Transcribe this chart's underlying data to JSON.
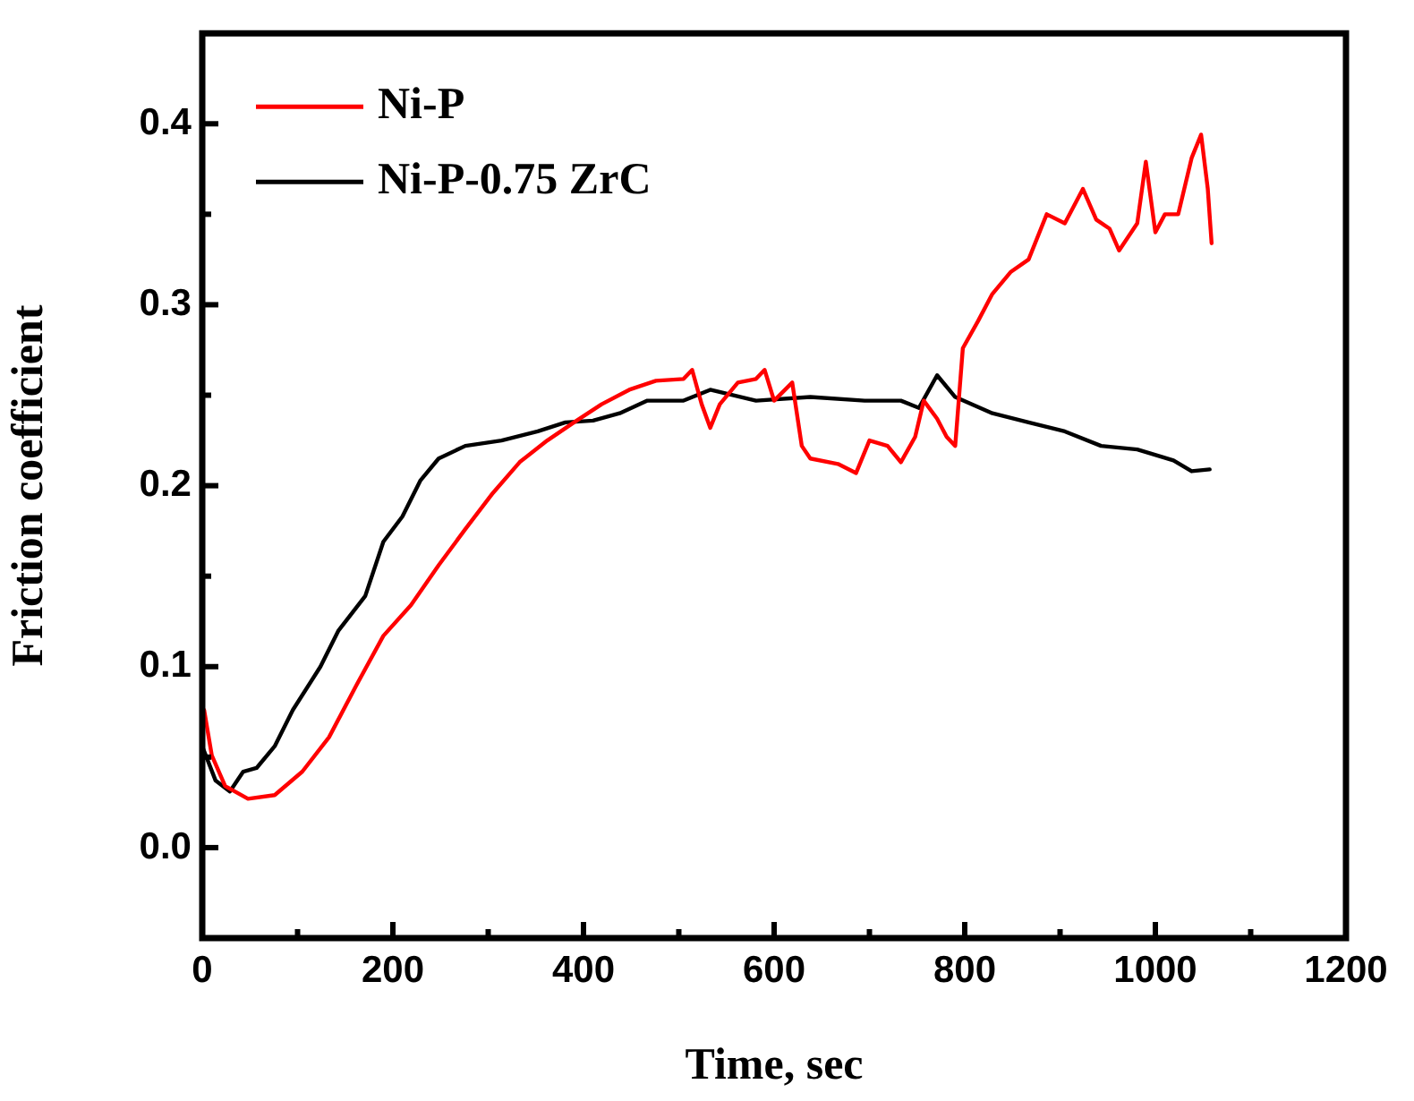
{
  "chart_data": {
    "type": "line",
    "xlabel": "Time, sec",
    "ylabel": "Friction coefficient",
    "xlim": [
      0,
      1200
    ],
    "ylim": [
      -0.05,
      0.45
    ],
    "xticks": [
      0,
      {
        "value": 100,
        "label": null
      },
      200,
      {
        "value": 300,
        "label": null
      },
      400,
      {
        "value": 500,
        "label": null
      },
      600,
      {
        "value": 700,
        "label": null
      },
      800,
      {
        "value": 900,
        "label": null
      },
      1000,
      {
        "value": 1100,
        "label": null
      },
      1200
    ],
    "yticks": [
      {
        "value": 0,
        "label": "0.0"
      },
      {
        "value": 0.05,
        "label": null
      },
      0.1,
      {
        "value": 0.15,
        "label": null
      },
      0.2,
      {
        "value": 0.25,
        "label": null
      },
      0.3,
      {
        "value": 0.35,
        "label": null
      },
      0.4
    ],
    "legend": "top left",
    "marker": "none",
    "line_style": "solid",
    "series": [
      {
        "name": "Ni-P",
        "color": "#ff0000",
        "x": [
          2,
          10,
          24,
          48,
          76,
          105,
          133,
          162,
          190,
          219,
          248,
          276,
          305,
          333,
          362,
          390,
          419,
          448,
          476,
          505,
          514,
          524,
          533,
          543,
          562,
          581,
          590,
          600,
          619,
          629,
          638,
          667,
          686,
          700,
          719,
          733,
          748,
          757,
          771,
          781,
          790,
          798,
          814,
          829,
          848,
          867,
          886,
          905,
          924,
          938,
          952,
          962,
          981,
          990,
          1000,
          1010,
          1024,
          1038,
          1048,
          1055,
          1059
        ],
        "values": [
          0.076,
          0.051,
          0.034,
          0.027,
          0.029,
          0.042,
          0.061,
          0.09,
          0.117,
          0.134,
          0.156,
          0.176,
          0.196,
          0.213,
          0.225,
          0.235,
          0.245,
          0.253,
          0.258,
          0.259,
          0.264,
          0.245,
          0.232,
          0.245,
          0.257,
          0.259,
          0.264,
          0.247,
          0.257,
          0.222,
          0.215,
          0.212,
          0.207,
          0.225,
          0.222,
          0.213,
          0.227,
          0.247,
          0.237,
          0.227,
          0.222,
          0.276,
          0.291,
          0.306,
          0.318,
          0.325,
          0.35,
          0.345,
          0.364,
          0.347,
          0.342,
          0.33,
          0.345,
          0.379,
          0.34,
          0.35,
          0.35,
          0.381,
          0.394,
          0.364,
          0.334
        ]
      },
      {
        "name": "Ni-P-0.75 ZrC",
        "color": "#000000",
        "x": [
          0,
          14,
          29,
          43,
          57,
          76,
          95,
          124,
          143,
          171,
          190,
          210,
          229,
          248,
          276,
          314,
          352,
          381,
          410,
          438,
          467,
          505,
          533,
          581,
          638,
          695,
          733,
          752,
          771,
          790,
          829,
          867,
          905,
          943,
          981,
          1019,
          1038,
          1057
        ],
        "values": [
          0.056,
          0.037,
          0.031,
          0.042,
          0.044,
          0.056,
          0.076,
          0.1,
          0.12,
          0.139,
          0.169,
          0.183,
          0.203,
          0.215,
          0.222,
          0.225,
          0.23,
          0.235,
          0.236,
          0.24,
          0.247,
          0.247,
          0.253,
          0.247,
          0.249,
          0.247,
          0.247,
          0.243,
          0.261,
          0.249,
          0.24,
          0.235,
          0.23,
          0.222,
          0.22,
          0.214,
          0.208,
          0.209
        ]
      }
    ]
  }
}
